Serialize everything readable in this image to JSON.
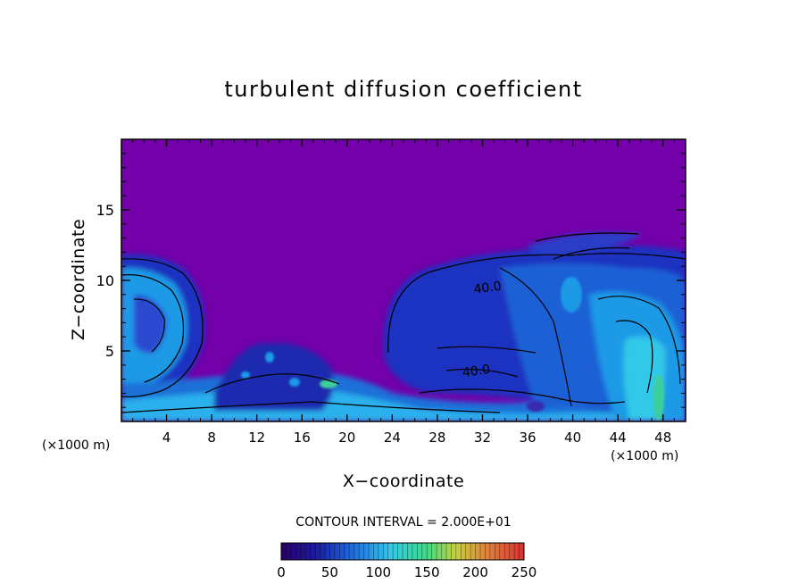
{
  "chart_data": {
    "type": "heatmap",
    "title": "turbulent diffusion coefficient",
    "xlabel": "X−coordinate",
    "ylabel": "Z−coordinate",
    "x_unit": "(×1000 m)",
    "x_unit_right": "(×1000 m)",
    "xlim": [
      0,
      50
    ],
    "ylim": [
      0,
      20
    ],
    "x_ticks": [
      4,
      8,
      12,
      16,
      20,
      24,
      28,
      32,
      36,
      40,
      44,
      48
    ],
    "y_ticks": [
      5,
      10,
      15
    ],
    "contour_interval_text": "CONTOUR INTERVAL = 2.000E+01",
    "contour_labels": [
      {
        "x": 32.5,
        "z": 9.2,
        "text": "40.0"
      },
      {
        "x": 31.5,
        "z": 3.3,
        "text": "40.0"
      }
    ],
    "colorbar": {
      "min": 0,
      "max": 250,
      "ticks": [
        0,
        50,
        100,
        150,
        200,
        250
      ],
      "colors": [
        "#2a0066",
        "#1a1aa0",
        "#1f6fe0",
        "#33c8e8",
        "#3ddc84",
        "#c8d040",
        "#e07a3a",
        "#d63030"
      ]
    },
    "colors": {
      "background_value": "#7300a8",
      "low": "#1a30c0",
      "mid": "#1f9ae6",
      "high": "#3ecf9a"
    }
  }
}
